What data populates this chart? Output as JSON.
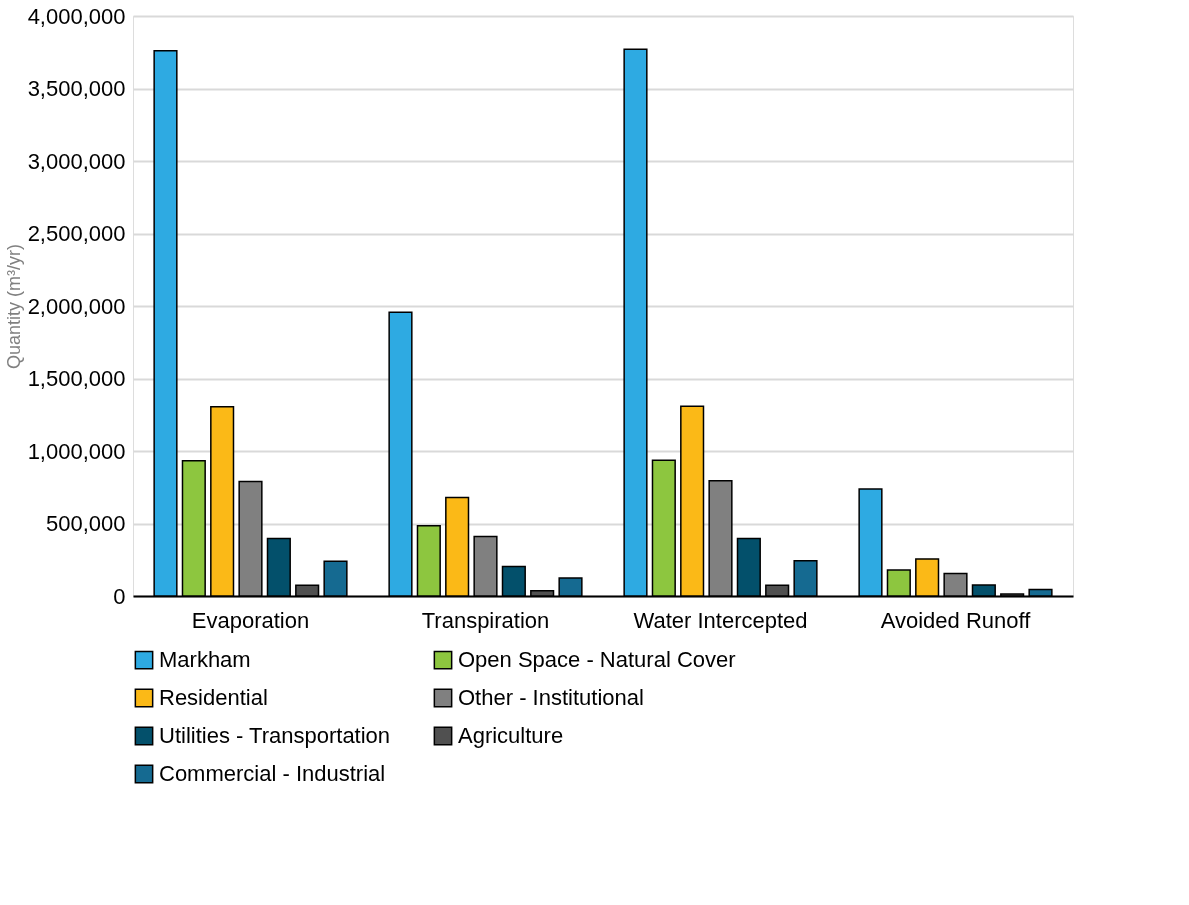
{
  "chart_data": {
    "type": "bar",
    "ylabel": "Quantity (m³/yr)",
    "categories": [
      "Evaporation",
      "Transpiration",
      "Water Intercepted",
      "Avoided Runoff"
    ],
    "series": [
      {
        "name": "Markham",
        "color": "#2eaae2",
        "values": [
          3760000,
          1957000,
          3770000,
          738000
        ]
      },
      {
        "name": "Open Space - Natural Cover",
        "color": "#8dc63f",
        "values": [
          933000,
          485000,
          936000,
          179000
        ]
      },
      {
        "name": "Residential",
        "color": "#fbb917",
        "values": [
          1305000,
          680000,
          1308000,
          256000
        ]
      },
      {
        "name": "Other - Institutional",
        "color": "#808080",
        "values": [
          790000,
          411000,
          794000,
          156000
        ]
      },
      {
        "name": "Utilities - Transportation",
        "color": "#03506b",
        "values": [
          396000,
          203000,
          396000,
          76000
        ]
      },
      {
        "name": "Agriculture",
        "color": "#505050",
        "values": [
          74000,
          37000,
          74000,
          13000
        ]
      },
      {
        "name": "Commercial - Industrial",
        "color": "#156a91",
        "values": [
          240000,
          124000,
          243000,
          45000
        ]
      }
    ],
    "ylim": [
      0,
      4000000
    ],
    "yticks": [
      0,
      {
        "value": 500000,
        "label": "500,000"
      },
      {
        "value": 1000000,
        "label": "1,000,000"
      },
      {
        "value": 1500000,
        "label": "1,500,000"
      },
      {
        "value": 2000000,
        "label": "2,000,000"
      },
      {
        "value": 2500000,
        "label": "2,500,000"
      },
      {
        "value": 3000000,
        "label": "3,000,000"
      },
      {
        "value": 3500000,
        "label": "3,500,000"
      },
      {
        "value": 4000000,
        "label": "4,000,000"
      }
    ],
    "grid": "y",
    "legend": "bottom"
  }
}
